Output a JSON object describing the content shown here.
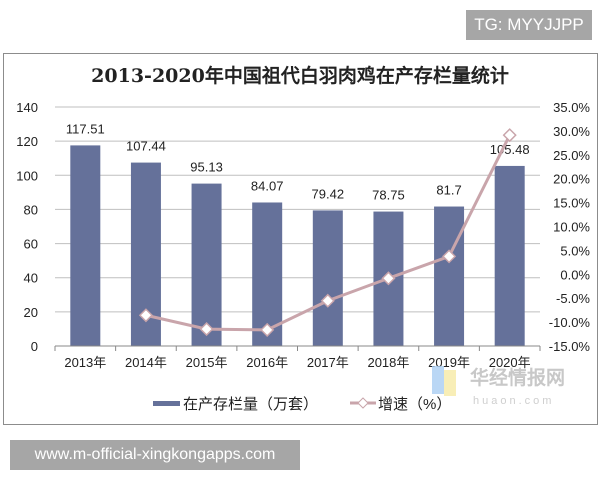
{
  "overlay": {
    "tag": "TG: MYYJJPP",
    "website": "www.m-official-xingkongapps.com"
  },
  "watermark": {
    "name": "华经情报网",
    "domain": "huaon.com"
  },
  "colors": {
    "bar": "#65719a",
    "line": "#c9a5ab",
    "grid": "#bfbfbf"
  },
  "chart_data": {
    "type": "bar",
    "title": "2013-2020年中国祖代白羽肉鸡在产存栏量统计",
    "categories": [
      "2013年",
      "2014年",
      "2015年",
      "2016年",
      "2017年",
      "2018年",
      "2019年",
      "2020年"
    ],
    "series": [
      {
        "name": "在产存栏量（万套）",
        "type": "bar",
        "axis": "left",
        "values": [
          117.51,
          107.44,
          95.13,
          84.07,
          79.42,
          78.75,
          81.7,
          105.48
        ],
        "labels": [
          "117.51",
          "107.44",
          "95.13",
          "84.07",
          "79.42",
          "78.75",
          "81.7",
          "105.48"
        ]
      },
      {
        "name": "增速（%）",
        "type": "line",
        "axis": "right",
        "values": [
          null,
          -8.57,
          -11.46,
          -11.63,
          -5.53,
          -0.84,
          3.75,
          29.11
        ]
      }
    ],
    "y_left": {
      "min": 0,
      "max": 140,
      "ticks": [
        "0",
        "20",
        "40",
        "60",
        "80",
        "100",
        "120",
        "140"
      ]
    },
    "y_right": {
      "min": -15,
      "max": 35,
      "ticks": [
        "-15.0%",
        "-10.0%",
        "-5.0%",
        "0.0%",
        "5.0%",
        "10.0%",
        "15.0%",
        "20.0%",
        "25.0%",
        "30.0%",
        "35.0%"
      ]
    },
    "grid": true,
    "legend": "bottom"
  }
}
